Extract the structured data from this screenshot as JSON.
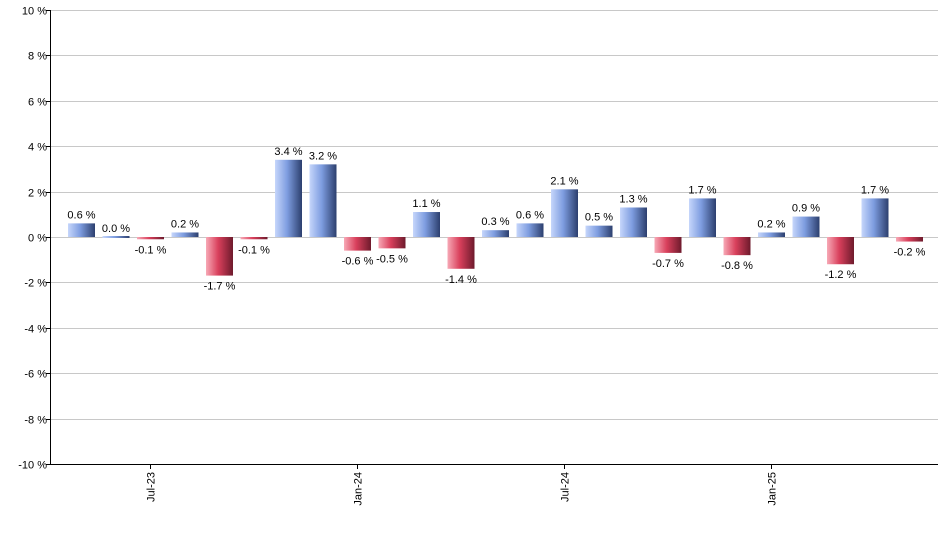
{
  "chart_data": {
    "type": "bar",
    "title": "",
    "xlabel": "",
    "ylabel": "",
    "ylim": [
      -10,
      10
    ],
    "y_ticks": [
      -10,
      -8,
      -6,
      -4,
      -2,
      0,
      2,
      4,
      6,
      8,
      10
    ],
    "y_tick_suffix": " %",
    "grid": true,
    "x_tick_labels": [
      {
        "label": "Jul-23",
        "index": 2
      },
      {
        "label": "Jan-24",
        "index": 8
      },
      {
        "label": "Jul-24",
        "index": 14
      },
      {
        "label": "Jan-25",
        "index": 20
      }
    ],
    "values": [
      0.6,
      0.0,
      -0.1,
      0.2,
      -1.7,
      -0.1,
      3.4,
      3.2,
      -0.6,
      -0.5,
      1.1,
      -1.4,
      0.3,
      0.6,
      2.1,
      0.5,
      1.3,
      -0.7,
      1.7,
      -0.8,
      0.2,
      0.9,
      -1.2,
      1.7,
      -0.2
    ],
    "value_labels": [
      "0.6 %",
      "0.0 %",
      "-0.1 %",
      "0.2 %",
      "-1.7 %",
      "-0.1 %",
      "3.4 %",
      "3.2 %",
      "-0.6 %",
      "-0.5 %",
      "1.1 %",
      "-1.4 %",
      "0.3 %",
      "0.6 %",
      "2.1 %",
      "0.5 %",
      "1.3 %",
      "-0.7 %",
      "1.7 %",
      "-0.8 %",
      "0.2 %",
      "0.9 %",
      "-1.2 %",
      "1.7 %",
      "-0.2 %"
    ],
    "colors": {
      "positive_light": "#c6d6fb",
      "positive_mid": "#7e9de0",
      "positive_dark": "#2c3f6e",
      "negative_light": "#f7a9b6",
      "negative_mid": "#d9405c",
      "negative_dark": "#6e1a2c",
      "grid": "#c8c8c8",
      "axis": "#000000"
    }
  }
}
